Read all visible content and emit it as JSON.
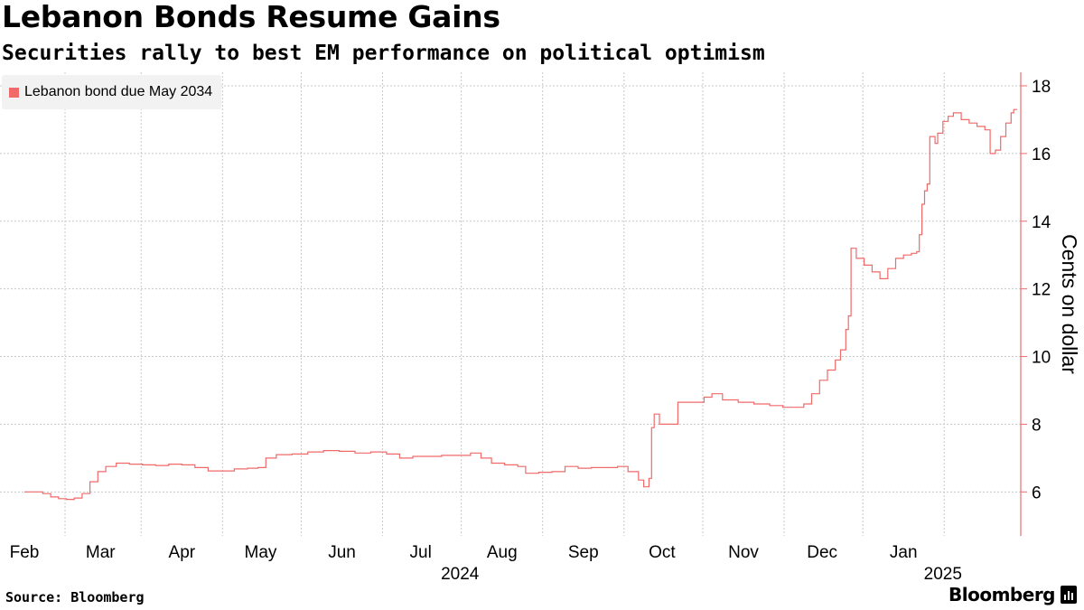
{
  "header": {
    "title": "Lebanon Bonds Resume Gains",
    "subtitle": "Securities rally to best EM performance on political optimism"
  },
  "footer": {
    "source": "Source: Bloomberg",
    "brand": "Bloomberg",
    "brand_icon": "bloomberg-terminal-icon"
  },
  "colors": {
    "series": "#f06a6a",
    "axis": "#f06a6a",
    "grid": "#c8c8c8",
    "text": "#000000",
    "legend_bg": "#f2f2f2"
  },
  "chart_data": {
    "type": "line",
    "title": "Lebanon Bonds Resume Gains",
    "subtitle": "Securities rally to best EM performance on political optimism",
    "ylabel": "Cents on dollar",
    "xlabel": "",
    "y_axis_side": "right",
    "ylim": [
      4.7,
      18.4
    ],
    "yticks": [
      6,
      8,
      10,
      12,
      14,
      16,
      18
    ],
    "xlim": [
      "2024-02-01",
      "2025-02-04"
    ],
    "x_month_ticks": [
      {
        "label": "Feb",
        "date": "2024-02-01"
      },
      {
        "label": "Mar",
        "date": "2024-03-01"
      },
      {
        "label": "Apr",
        "date": "2024-04-01"
      },
      {
        "label": "May",
        "date": "2024-05-01"
      },
      {
        "label": "Jun",
        "date": "2024-06-01"
      },
      {
        "label": "Jul",
        "date": "2024-07-01"
      },
      {
        "label": "Aug",
        "date": "2024-08-01"
      },
      {
        "label": "Sep",
        "date": "2024-09-01"
      },
      {
        "label": "Oct",
        "date": "2024-10-01"
      },
      {
        "label": "Nov",
        "date": "2024-11-01"
      },
      {
        "label": "Dec",
        "date": "2024-12-01"
      },
      {
        "label": "Jan",
        "date": "2025-01-01"
      }
    ],
    "x_year_labels": [
      {
        "label": "2024",
        "date": "2024-07-16"
      },
      {
        "label": "2025",
        "date": "2025-01-16"
      }
    ],
    "grid": true,
    "legend_position": "top-left",
    "series": [
      {
        "name": "Lebanon bond due May 2034",
        "step": true,
        "points": [
          [
            "2024-02-01",
            6.0
          ],
          [
            "2024-02-05",
            6.0
          ],
          [
            "2024-02-08",
            5.95
          ],
          [
            "2024-02-11",
            5.85
          ],
          [
            "2024-02-14",
            5.8
          ],
          [
            "2024-02-17",
            5.78
          ],
          [
            "2024-02-20",
            5.82
          ],
          [
            "2024-02-23",
            5.95
          ],
          [
            "2024-02-26",
            6.3
          ],
          [
            "2024-02-29",
            6.6
          ],
          [
            "2024-03-03",
            6.75
          ],
          [
            "2024-03-07",
            6.85
          ],
          [
            "2024-03-12",
            6.82
          ],
          [
            "2024-03-17",
            6.8
          ],
          [
            "2024-03-22",
            6.78
          ],
          [
            "2024-03-27",
            6.82
          ],
          [
            "2024-04-01",
            6.8
          ],
          [
            "2024-04-06",
            6.72
          ],
          [
            "2024-04-11",
            6.62
          ],
          [
            "2024-04-16",
            6.62
          ],
          [
            "2024-04-21",
            6.68
          ],
          [
            "2024-04-26",
            6.7
          ],
          [
            "2024-04-30",
            6.72
          ],
          [
            "2024-05-03",
            7.0
          ],
          [
            "2024-05-07",
            7.1
          ],
          [
            "2024-05-13",
            7.12
          ],
          [
            "2024-05-19",
            7.18
          ],
          [
            "2024-05-25",
            7.22
          ],
          [
            "2024-05-31",
            7.2
          ],
          [
            "2024-06-06",
            7.15
          ],
          [
            "2024-06-12",
            7.18
          ],
          [
            "2024-06-18",
            7.12
          ],
          [
            "2024-06-23",
            7.0
          ],
          [
            "2024-06-28",
            7.05
          ],
          [
            "2024-07-03",
            7.05
          ],
          [
            "2024-07-09",
            7.08
          ],
          [
            "2024-07-15",
            7.08
          ],
          [
            "2024-07-20",
            7.15
          ],
          [
            "2024-07-24",
            7.0
          ],
          [
            "2024-07-28",
            6.85
          ],
          [
            "2024-08-02",
            6.8
          ],
          [
            "2024-08-07",
            6.75
          ],
          [
            "2024-08-10",
            6.55
          ],
          [
            "2024-08-15",
            6.58
          ],
          [
            "2024-08-20",
            6.6
          ],
          [
            "2024-08-25",
            6.75
          ],
          [
            "2024-08-30",
            6.7
          ],
          [
            "2024-09-04",
            6.72
          ],
          [
            "2024-09-09",
            6.72
          ],
          [
            "2024-09-14",
            6.75
          ],
          [
            "2024-09-18",
            6.6
          ],
          [
            "2024-09-22",
            6.35
          ],
          [
            "2024-09-24",
            6.15
          ],
          [
            "2024-09-26",
            6.4
          ],
          [
            "2024-09-27",
            7.9
          ],
          [
            "2024-09-28",
            8.3
          ],
          [
            "2024-09-30",
            8.0
          ],
          [
            "2024-10-04",
            8.0
          ],
          [
            "2024-10-07",
            8.65
          ],
          [
            "2024-10-12",
            8.65
          ],
          [
            "2024-10-17",
            8.8
          ],
          [
            "2024-10-20",
            8.9
          ],
          [
            "2024-10-24",
            8.72
          ],
          [
            "2024-10-30",
            8.65
          ],
          [
            "2024-11-05",
            8.6
          ],
          [
            "2024-11-11",
            8.55
          ],
          [
            "2024-11-16",
            8.5
          ],
          [
            "2024-11-21",
            8.5
          ],
          [
            "2024-11-24",
            8.6
          ],
          [
            "2024-11-27",
            8.9
          ],
          [
            "2024-11-30",
            9.3
          ],
          [
            "2024-12-03",
            9.6
          ],
          [
            "2024-12-06",
            9.9
          ],
          [
            "2024-12-08",
            10.2
          ],
          [
            "2024-12-10",
            10.8
          ],
          [
            "2024-12-11",
            11.2
          ],
          [
            "2024-12-12",
            13.2
          ],
          [
            "2024-12-14",
            12.9
          ],
          [
            "2024-12-17",
            12.7
          ],
          [
            "2024-12-20",
            12.5
          ],
          [
            "2024-12-23",
            12.3
          ],
          [
            "2024-12-26",
            12.6
          ],
          [
            "2024-12-29",
            12.9
          ],
          [
            "2025-01-01",
            13.0
          ],
          [
            "2025-01-04",
            13.05
          ],
          [
            "2025-01-06",
            13.1
          ],
          [
            "2025-01-07",
            13.6
          ],
          [
            "2025-01-08",
            14.5
          ],
          [
            "2025-01-09",
            14.9
          ],
          [
            "2025-01-10",
            15.1
          ],
          [
            "2025-01-11",
            16.5
          ],
          [
            "2025-01-13",
            16.3
          ],
          [
            "2025-01-14",
            16.6
          ],
          [
            "2025-01-16",
            16.95
          ],
          [
            "2025-01-18",
            17.1
          ],
          [
            "2025-01-20",
            17.2
          ],
          [
            "2025-01-23",
            17.0
          ],
          [
            "2025-01-26",
            16.9
          ],
          [
            "2025-01-29",
            16.8
          ],
          [
            "2025-02-01",
            16.7
          ],
          [
            "2025-02-03",
            16.0
          ],
          [
            "2025-02-05",
            16.1
          ],
          [
            "2025-02-07",
            16.5
          ],
          [
            "2025-02-09",
            16.9
          ],
          [
            "2025-02-11",
            17.2
          ],
          [
            "2025-02-12",
            17.3
          ]
        ]
      }
    ]
  }
}
